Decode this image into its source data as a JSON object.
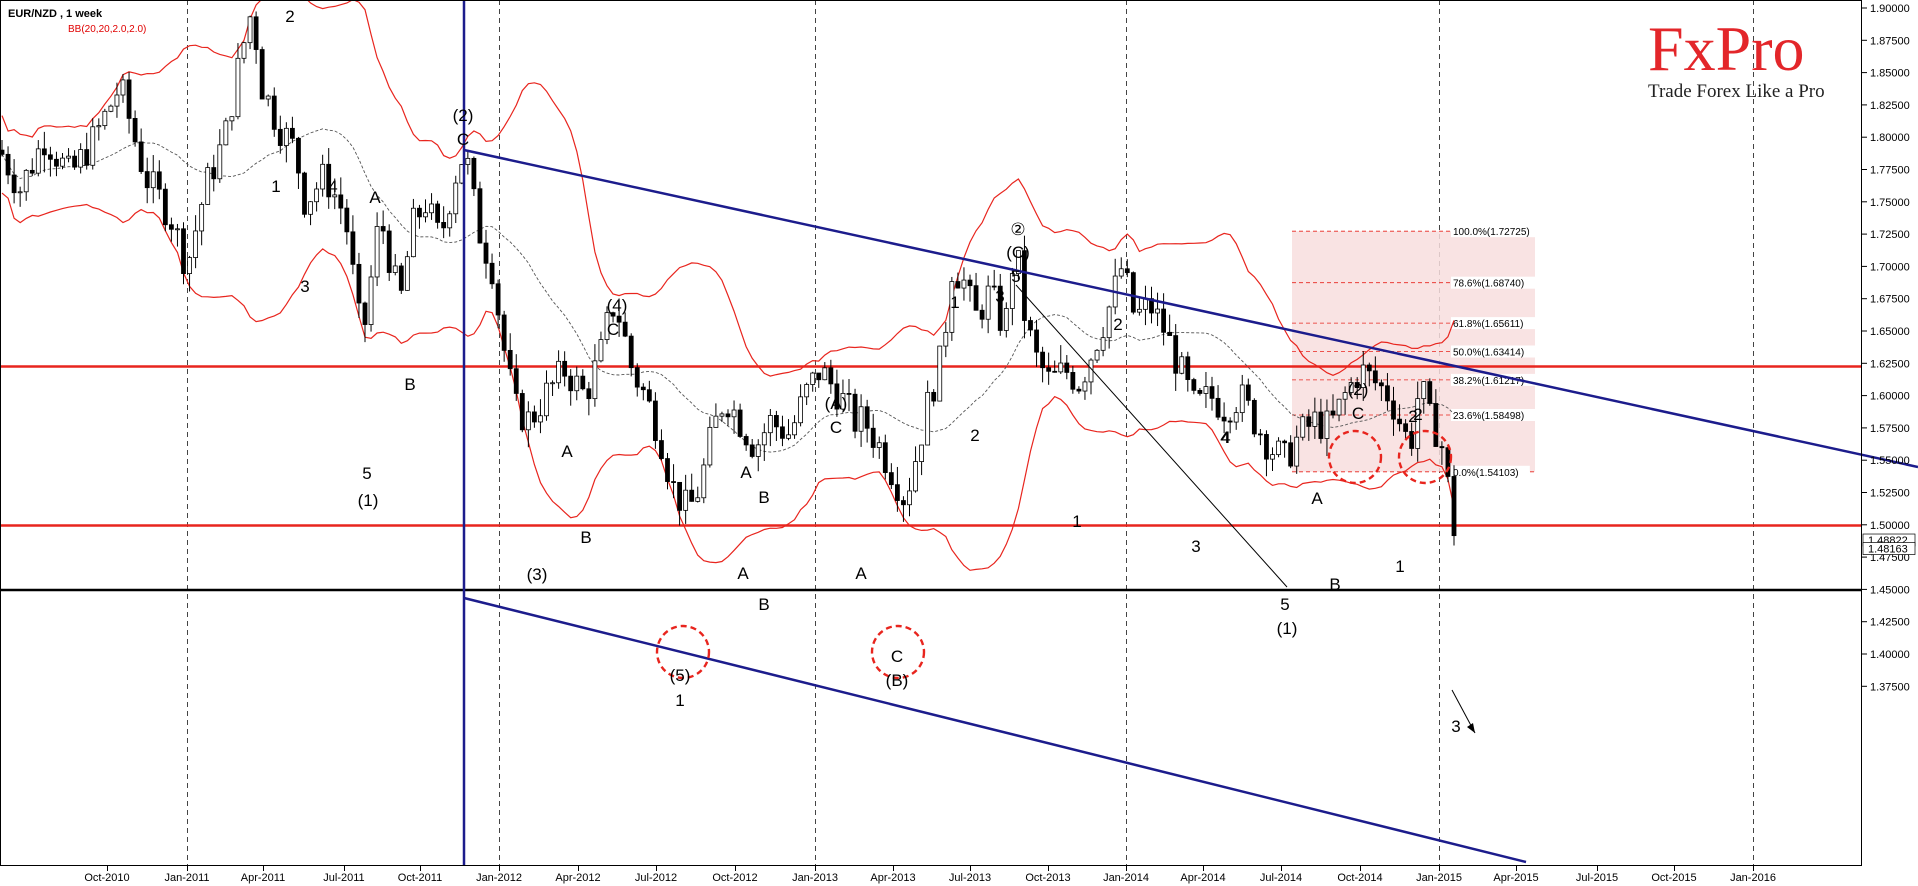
{
  "header": {
    "symbol_label": "EUR/NZD , 1 week",
    "indicator_label": "BB(20,20,2.0,2.0)"
  },
  "logo": {
    "brand": "FxPro",
    "tagline": "Trade Forex Like a Pro"
  },
  "colors": {
    "bollinger": "#e8251e",
    "channel": "#1c1c8c",
    "level": "#e8251e",
    "target_level": "#000000",
    "fib_zone": "#f8dede",
    "candle_up": "#ffffff",
    "candle_down": "#000000"
  },
  "chart_data": {
    "type": "candlestick",
    "y_range": [
      1.37,
      1.905
    ],
    "y_ticks": [
      "1.90000",
      "1.87500",
      "1.85000",
      "1.82500",
      "1.80000",
      "1.77500",
      "1.75000",
      "1.72500",
      "1.70000",
      "1.67500",
      "1.65000",
      "1.62500",
      "1.60000",
      "1.57500",
      "1.55000",
      "1.52500",
      "1.50000",
      "1.47500",
      "1.45000",
      "1.42500",
      "1.40000",
      "1.37500"
    ],
    "x_ticks": [
      "Oct-2010",
      "Jan-2011",
      "Apr-2011",
      "Jul-2011",
      "Oct-2011",
      "Jan-2012",
      "Apr-2012",
      "Jul-2012",
      "Oct-2012",
      "Jan-2013",
      "Apr-2013",
      "Jul-2013",
      "Oct-2013",
      "Jan-2014",
      "Apr-2014",
      "Jul-2014",
      "Oct-2014",
      "Jan-2015",
      "Apr-2015",
      "Jul-2015",
      "Oct-2015",
      "Jan-2016"
    ],
    "price_labels": [
      "1.48822",
      "1.48163"
    ],
    "horizontal_levels": [
      1.6225,
      1.4995,
      1.4495
    ],
    "fibonacci": {
      "levels": [
        {
          "label": "100.0%(1.72725)",
          "value": 1.72725
        },
        {
          "label": "78.6%(1.68740)",
          "value": 1.6874
        },
        {
          "label": "61.8%(1.65611)",
          "value": 1.65611
        },
        {
          "label": "50.0%(1.63414)",
          "value": 1.63414
        },
        {
          "label": "38.2%(1.61217)",
          "value": 1.61217
        },
        {
          "label": "23.6%(1.58498)",
          "value": 1.58498
        },
        {
          "label": "0.0%(1.54103)",
          "value": 1.54103
        }
      ]
    },
    "wave_labels": [
      "2",
      "1",
      "4",
      "3",
      "A",
      "B",
      "5",
      "(1)",
      "(2)",
      "C",
      "(4)",
      "C",
      "A",
      "B",
      "(3)",
      "A",
      "B",
      "(5)",
      "1",
      "(A)",
      "C",
      "A",
      "B",
      "A",
      "C",
      "(B)",
      "1",
      "3",
      "2",
      "②",
      "(C)",
      "5",
      "4",
      "1",
      "2",
      "2",
      "3",
      "4",
      "(1)",
      "5",
      "A",
      "B",
      "(2)",
      "C",
      "1",
      "2",
      "3"
    ],
    "series": [
      {
        "name": "",
        "points": [
          [
            1.745,
            1.6
          ]
        ]
      }
    ]
  }
}
